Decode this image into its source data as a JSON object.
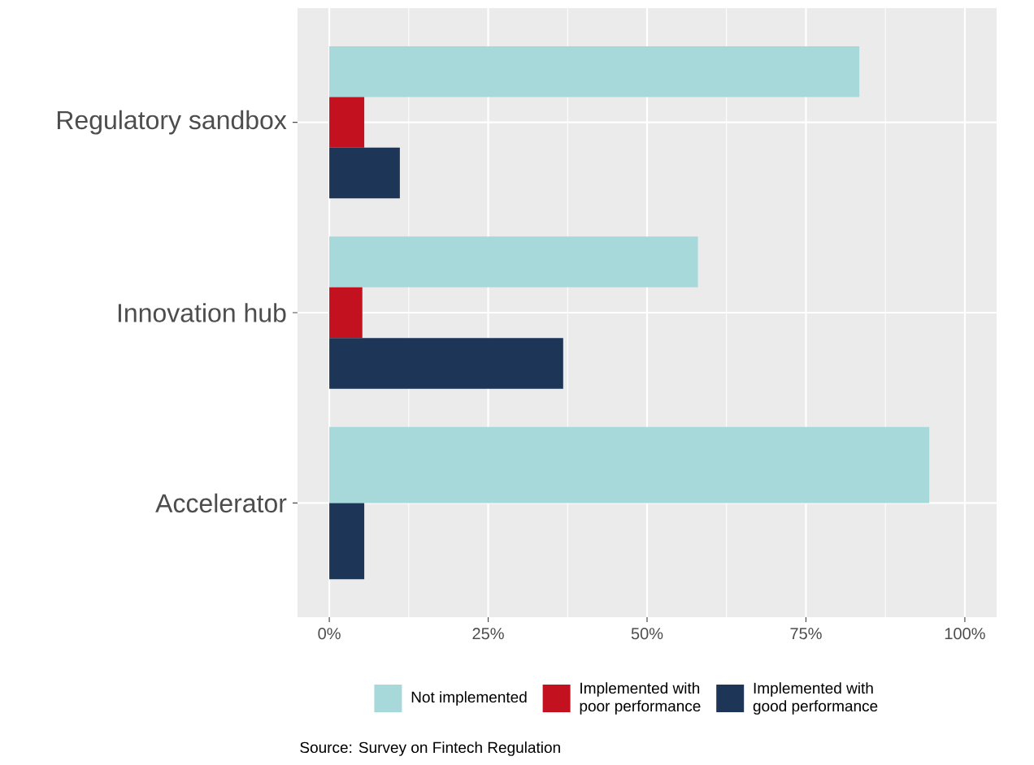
{
  "chart_data": {
    "type": "bar",
    "orientation": "horizontal",
    "categories": [
      "Regulatory sandbox",
      "Innovation hub",
      "Accelerator"
    ],
    "series": [
      {
        "name": "Not implemented",
        "color": "#a8d9da",
        "values": [
          83.4,
          58.0,
          94.4
        ]
      },
      {
        "name": "Implemented with poor performance",
        "color": "#c41120",
        "values": [
          5.5,
          5.2,
          null
        ]
      },
      {
        "name": "Implemented with good performance",
        "color": "#1d3557",
        "values": [
          11.1,
          36.8,
          5.5
        ]
      }
    ],
    "xlim": [
      -5,
      105
    ],
    "xticks": [
      {
        "value": 0,
        "label": "0%"
      },
      {
        "value": 25,
        "label": "25%"
      },
      {
        "value": 50,
        "label": "50%"
      },
      {
        "value": 75,
        "label": "75%"
      },
      {
        "value": 100,
        "label": "100%"
      }
    ],
    "grid": true,
    "legend": "bottom",
    "annotations": [
      "Source: Survey on Fintech Regulation"
    ]
  }
}
